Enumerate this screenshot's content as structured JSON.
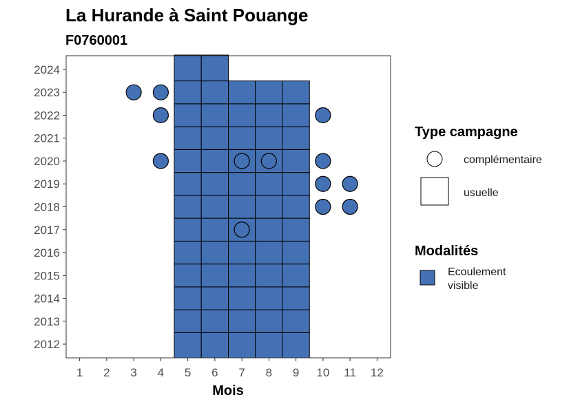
{
  "chart_data": {
    "type": "heatmap",
    "title": "La Hurande à Saint Pouange",
    "subtitle": "F0760001",
    "xlabel": "Mois",
    "ylabel": "",
    "x_ticks": [
      1,
      2,
      3,
      4,
      5,
      6,
      7,
      8,
      9,
      10,
      11,
      12
    ],
    "y_ticks": [
      2012,
      2013,
      2014,
      2015,
      2016,
      2017,
      2018,
      2019,
      2020,
      2021,
      2022,
      2023,
      2024
    ],
    "xlim": [
      0.5,
      12.5
    ],
    "ylim": [
      2011.4,
      2024.6
    ],
    "fill_color": "#4471b4",
    "usuelle": {
      "months_2012_2023": [
        5,
        6,
        7,
        8,
        9
      ],
      "months_2024": [
        5,
        6
      ]
    },
    "complementaire": [
      {
        "month": 3,
        "year": 2023
      },
      {
        "month": 4,
        "year": 2023
      },
      {
        "month": 4,
        "year": 2022
      },
      {
        "month": 10,
        "year": 2022
      },
      {
        "month": 4,
        "year": 2020
      },
      {
        "month": 7,
        "year": 2020
      },
      {
        "month": 8,
        "year": 2020
      },
      {
        "month": 10,
        "year": 2020
      },
      {
        "month": 10,
        "year": 2019
      },
      {
        "month": 11,
        "year": 2019
      },
      {
        "month": 10,
        "year": 2018
      },
      {
        "month": 11,
        "year": 2018
      },
      {
        "month": 7,
        "year": 2017
      }
    ],
    "legend": {
      "type_title": "Type campagne",
      "type_items": [
        "complémentaire",
        "usuelle"
      ],
      "modalites_title": "Modalités",
      "modalites_items": [
        "Ecoulement\nvisible"
      ]
    },
    "grid": false
  }
}
